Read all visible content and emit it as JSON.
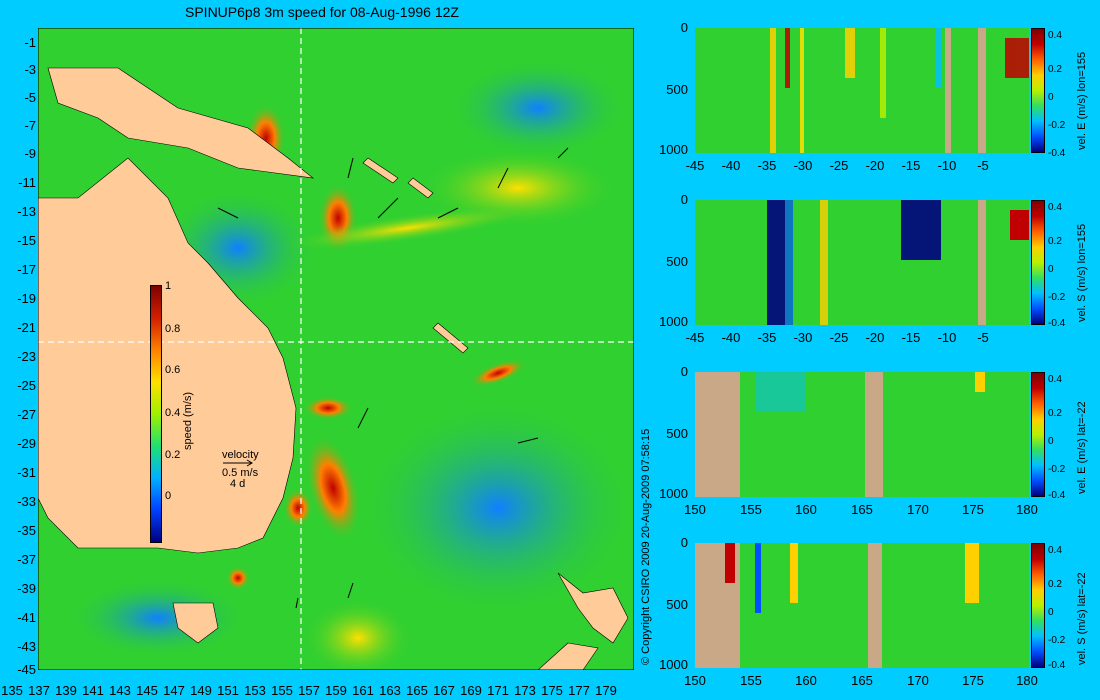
{
  "title": "SPINUP6p8 3m speed for 08-Aug-1996 12Z",
  "copyright": "© Copyright CSIRO 2009  20-Aug-2009 07:58:15",
  "map": {
    "lat_ticks": [
      "-1",
      "-3",
      "-5",
      "-7",
      "-9",
      "-11",
      "-13",
      "-15",
      "-17",
      "-19",
      "-21",
      "-23",
      "-25",
      "-27",
      "-29",
      "-31",
      "-33",
      "-35",
      "-37",
      "-39",
      "-41",
      "-43",
      "-45"
    ],
    "lon_ticks": [
      "135",
      "137",
      "139",
      "141",
      "143",
      "145",
      "147",
      "149",
      "151",
      "153",
      "155",
      "157",
      "159",
      "161",
      "163",
      "165",
      "167",
      "169",
      "171",
      "173",
      "175",
      "177",
      "179"
    ],
    "colorbar": {
      "label": "speed (m/s)",
      "ticks": [
        "1",
        "0.8",
        "0.6",
        "0.4",
        "0.2",
        "0"
      ]
    },
    "velocity_key": {
      "title": "velocity",
      "speed": "0.5 m/s",
      "duration": "4 d"
    },
    "colors": {
      "land": "#ffcc99",
      "ocean_low": "#2090ff",
      "ocean_mid": "#30d030",
      "crosshair": "#ffffff"
    }
  },
  "panels": [
    {
      "label": "vel. E (m/s) lon=155",
      "x_ticks": [
        "-45",
        "-40",
        "-35",
        "-30",
        "-25",
        "-20",
        "-15",
        "-10",
        "-5"
      ],
      "y_ticks": [
        "0",
        "500",
        "1000"
      ],
      "cbar_ticks": [
        "0.4",
        "0.2",
        "0",
        "-0.2",
        "-0.4"
      ]
    },
    {
      "label": "vel. S (m/s) lon=155",
      "x_ticks": [
        "-45",
        "-40",
        "-35",
        "-30",
        "-25",
        "-20",
        "-15",
        "-10",
        "-5"
      ],
      "y_ticks": [
        "0",
        "500",
        "1000"
      ],
      "cbar_ticks": [
        "0.4",
        "0.2",
        "0",
        "-0.2",
        "-0.4"
      ]
    },
    {
      "label": "vel. E (m/s) lat=-22",
      "x_ticks": [
        "150",
        "155",
        "160",
        "165",
        "170",
        "175",
        "180"
      ],
      "y_ticks": [
        "0",
        "500",
        "1000"
      ],
      "cbar_ticks": [
        "0.4",
        "0.2",
        "0",
        "-0.2",
        "-0.4"
      ]
    },
    {
      "label": "vel. S (m/s) lat=-22",
      "x_ticks": [
        "150",
        "155",
        "160",
        "165",
        "170",
        "175",
        "180"
      ],
      "y_ticks": [
        "0",
        "500",
        "1000"
      ],
      "cbar_ticks": [
        "0.4",
        "0.2",
        "0",
        "-0.2",
        "-0.4"
      ]
    }
  ]
}
